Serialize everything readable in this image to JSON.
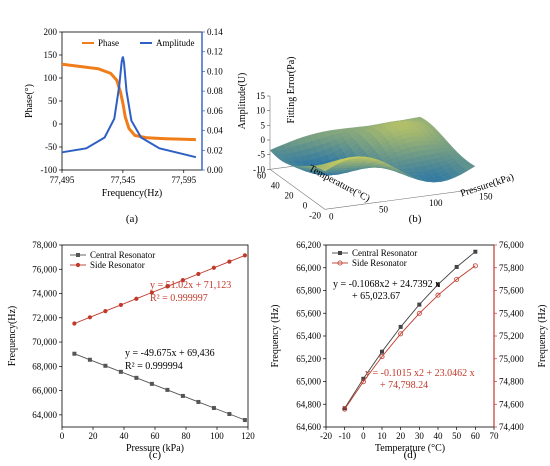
{
  "chart_data": [
    {
      "panel": "a",
      "type": "line",
      "caption": "(a)",
      "xlabel": "Frequency(Hz)",
      "ylabel_left": "Phase(°)",
      "ylabel_right": "Amplitude(U)",
      "xlim": [
        77495,
        77610
      ],
      "xticks": [
        77495,
        77545,
        77595
      ],
      "xtick_labels": [
        "77,495",
        "77,545",
        "77,595"
      ],
      "ylim_left": [
        -100,
        200
      ],
      "yticks_left": [
        -100,
        -50,
        0,
        50,
        100,
        150,
        200
      ],
      "ylim_right": [
        0,
        0.14
      ],
      "yticks_right": [
        0,
        0.02,
        0.04,
        0.06,
        0.08,
        0.1,
        0.12,
        0.14
      ],
      "ytick_labels_right": [
        "0.00",
        "0.02",
        "0.04",
        "0.06",
        "0.08",
        "0.10",
        "0.12",
        "0.14"
      ],
      "series": [
        {
          "name": "Phase",
          "axis": "left",
          "color": "#f07c1a",
          "x": [
            77495,
            77510,
            77525,
            77535,
            77540,
            77543,
            77545,
            77547,
            77550,
            77555,
            77565,
            77580,
            77595,
            77605
          ],
          "y": [
            130,
            125,
            120,
            110,
            95,
            70,
            45,
            15,
            -10,
            -25,
            -30,
            -32,
            -33,
            -34
          ]
        },
        {
          "name": "Amplitude",
          "axis": "right",
          "color": "#2e5fc4",
          "x": [
            77495,
            77515,
            77530,
            77538,
            77542,
            77544,
            77545,
            77546,
            77548,
            77552,
            77560,
            77575,
            77595,
            77605
          ],
          "y": [
            0.018,
            0.022,
            0.033,
            0.052,
            0.085,
            0.11,
            0.115,
            0.108,
            0.08,
            0.05,
            0.033,
            0.022,
            0.016,
            0.013
          ]
        }
      ]
    },
    {
      "panel": "b",
      "type": "surface",
      "caption": "(b)",
      "xlabel": "Pressure(kPa)",
      "ylabel": "Temperature(°C)",
      "zlabel": "Fitting Error(Pa)",
      "zticks": [
        -10,
        -5,
        0,
        5,
        10,
        15
      ],
      "xtick_labels": [
        "0",
        "50",
        "100",
        "150"
      ],
      "ytick_labels": [
        "60",
        "40",
        "20",
        "0",
        "-20"
      ]
    },
    {
      "panel": "c",
      "type": "scatter",
      "caption": "(c)",
      "xlabel": "Pressure (kPa)",
      "ylabel": "Frequency(Hz)",
      "xlim": [
        0,
        120
      ],
      "xticks": [
        0,
        20,
        40,
        60,
        80,
        100,
        120
      ],
      "ylim": [
        63000,
        78000
      ],
      "yticks": [
        64000,
        66000,
        68000,
        70000,
        72000,
        74000,
        76000,
        78000
      ],
      "ytick_labels": [
        "64,000",
        "66,000",
        "68,000",
        "70,000",
        "72,000",
        "74,000",
        "76,000",
        "78,000"
      ],
      "x": [
        8,
        18,
        28,
        38,
        48,
        58,
        68,
        78,
        88,
        98,
        108,
        118
      ],
      "series": [
        {
          "name": "Central Resonator",
          "color": "#555555",
          "marker": "square",
          "y": [
            69039,
            68542,
            68045,
            67549,
            67052,
            66555,
            66058,
            65561,
            65065,
            64568,
            64071,
            63574
          ],
          "equation": "y = -49.675x + 69,436",
          "r2": "R² = 0.999994",
          "eq_color": "#000000"
        },
        {
          "name": "Side Resonator",
          "color": "#c0392b",
          "marker": "circle",
          "y": [
            71531,
            72041,
            72552,
            73062,
            73572,
            74082,
            74592,
            75103,
            75613,
            76123,
            76633,
            77143
          ],
          "equation": "y = 51.02x + 71,123",
          "r2": "R² = 0.999997",
          "eq_color": "#c0392b"
        }
      ]
    },
    {
      "panel": "d",
      "type": "line",
      "caption": "(d)",
      "xlabel": "Temperature (°C)",
      "ylabel_left": "Frequency (Hz)",
      "ylabel_right": "Frequency (Hz)",
      "xlim": [
        -20,
        70
      ],
      "xticks": [
        -20,
        -10,
        0,
        10,
        20,
        30,
        40,
        50,
        60,
        70
      ],
      "ylim_left": [
        64600,
        66200
      ],
      "yticks_left": [
        64600,
        64800,
        65000,
        65200,
        65400,
        65600,
        65800,
        66000,
        66200
      ],
      "ytick_labels_left": [
        "64,600",
        "64,800",
        "65,000",
        "65,200",
        "65,400",
        "65,600",
        "65,800",
        "66,000",
        "66,200"
      ],
      "ylim_right": [
        74400,
        76000
      ],
      "yticks_right": [
        74400,
        74600,
        74800,
        75000,
        75200,
        75400,
        75600,
        75800,
        76000
      ],
      "ytick_labels_right": [
        "74,400",
        "74,600",
        "74,800",
        "75,000",
        "75,200",
        "75,400",
        "75,600",
        "75,800",
        "76,000"
      ],
      "x": [
        -10,
        0,
        10,
        20,
        30,
        40,
        50,
        60
      ],
      "series": [
        {
          "name": "Central Resonator",
          "axis": "left",
          "color": "#444444",
          "marker": "square",
          "y": [
            64765,
            65024,
            65262,
            65480,
            65676,
            65852,
            66007,
            66141
          ],
          "equation_lines": [
            "y = -0.1068x2 + 24.7392 x",
            "+ 65,023.67"
          ],
          "eq_color": "#000000"
        },
        {
          "name": "Side Resonator",
          "axis": "right",
          "color": "#c0392b",
          "marker": "circle",
          "y": [
            74557,
            74798,
            75019,
            75219,
            75399,
            75559,
            75698,
            75817
          ],
          "equation_lines": [
            "y = -0.1015 x2 + 23.0462 x",
            "+ 74,798.24"
          ],
          "eq_color": "#c0392b"
        }
      ]
    }
  ]
}
